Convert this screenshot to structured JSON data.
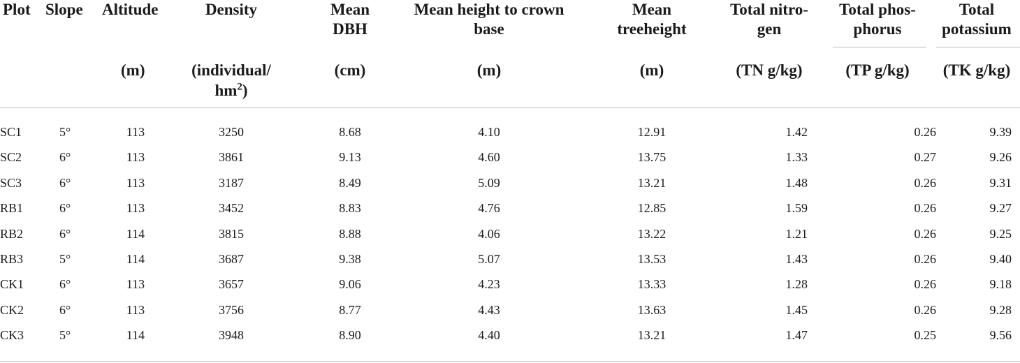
{
  "table": {
    "columns": [
      {
        "id": "plot",
        "header": "Plot",
        "unit": ""
      },
      {
        "id": "slope",
        "header": "Slope",
        "unit": ""
      },
      {
        "id": "altitude",
        "header": "Altitude",
        "unit": "(m)"
      },
      {
        "id": "density",
        "header": "Density",
        "unit_line1": "(individual/",
        "unit_line2_base": "hm",
        "unit_line2_sup": "2",
        "unit_line2_tail": ")"
      },
      {
        "id": "dbh",
        "header_line1": "Mean",
        "header_line2": "DBH",
        "unit": "(cm)"
      },
      {
        "id": "crown",
        "header_line1": "Mean height to crown",
        "header_line2": "base",
        "unit": "(m)"
      },
      {
        "id": "treeheight",
        "header_line1": "Mean",
        "header_line2": "treeheight",
        "unit": "(m)"
      },
      {
        "id": "tn",
        "header_line1": "Total nitro-",
        "header_line2": "gen",
        "unit": "(TN g/kg)"
      },
      {
        "id": "tp",
        "header_line1": "Total phos-",
        "header_line2": "phorus",
        "unit": "(TP g/kg)"
      },
      {
        "id": "tk",
        "header_line1": "Total",
        "header_line2": "potassium",
        "unit": "(TK g/kg)"
      }
    ],
    "rows": [
      [
        "SC1",
        "5°",
        "113",
        "3250",
        "8.68",
        "4.10",
        "12.91",
        "1.42",
        "0.26",
        "9.39"
      ],
      [
        "SC2",
        "6°",
        "113",
        "3861",
        "9.13",
        "4.60",
        "13.75",
        "1.33",
        "0.27",
        "9.26"
      ],
      [
        "SC3",
        "6°",
        "113",
        "3187",
        "8.49",
        "5.09",
        "13.21",
        "1.48",
        "0.26",
        "9.31"
      ],
      [
        "RB1",
        "6°",
        "113",
        "3452",
        "8.83",
        "4.76",
        "12.85",
        "1.59",
        "0.26",
        "9.27"
      ],
      [
        "RB2",
        "6°",
        "114",
        "3815",
        "8.88",
        "4.06",
        "13.22",
        "1.21",
        "0.26",
        "9.25"
      ],
      [
        "RB3",
        "5°",
        "114",
        "3687",
        "9.38",
        "5.07",
        "13.53",
        "1.43",
        "0.26",
        "9.40"
      ],
      [
        "CK1",
        "6°",
        "113",
        "3657",
        "9.06",
        "4.23",
        "13.33",
        "1.28",
        "0.26",
        "9.18"
      ],
      [
        "CK2",
        "6°",
        "113",
        "3756",
        "8.77",
        "4.43",
        "13.63",
        "1.45",
        "0.26",
        "9.28"
      ],
      [
        "CK3",
        "5°",
        "114",
        "3948",
        "8.90",
        "4.40",
        "13.21",
        "1.47",
        "0.25",
        "9.56"
      ]
    ]
  }
}
